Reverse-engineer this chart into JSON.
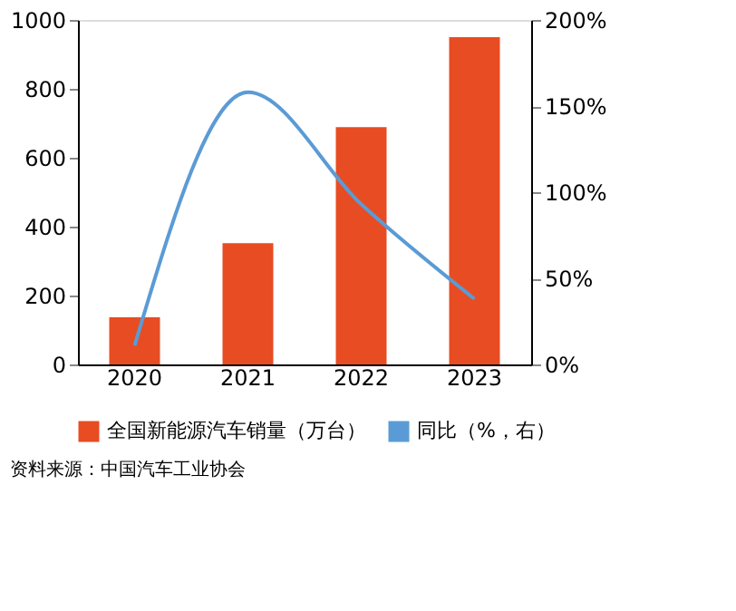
{
  "chart_data": {
    "type": "bar",
    "categories": [
      "2020",
      "2021",
      "2022",
      "2023"
    ],
    "series": [
      {
        "name": "全国新能源汽车销量（万台）",
        "color": "#e84c22",
        "values": [
          137,
          352,
          689,
          950
        ]
      },
      {
        "name": "同比（%，右）",
        "type": "line",
        "axis": "y2",
        "color": "#5b9bd5",
        "values": [
          11,
          158,
          93,
          38
        ]
      }
    ],
    "ylim": [
      0,
      1000
    ],
    "yticks": [
      0,
      200,
      400,
      600,
      800,
      1000
    ],
    "y2lim": [
      0,
      200
    ],
    "y2ticks": [
      {
        "value": 0,
        "label": "0%"
      },
      {
        "value": 50,
        "label": "50%"
      },
      {
        "value": 100,
        "label": "100%"
      },
      {
        "value": 150,
        "label": "150%"
      },
      {
        "value": 200,
        "label": "200%"
      }
    ],
    "grid": false,
    "legend": "bottom",
    "marker": "none",
    "annotations": [
      "资料来源：中国汽车工业协会"
    ]
  }
}
